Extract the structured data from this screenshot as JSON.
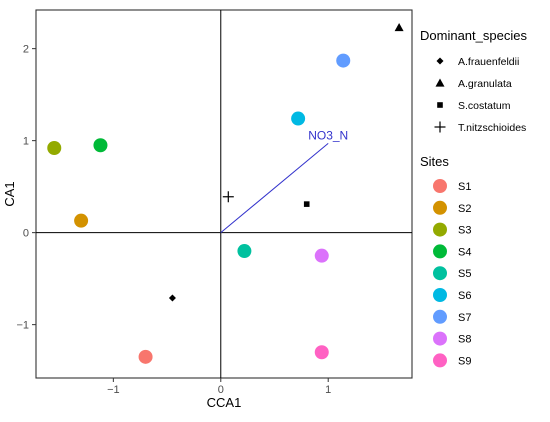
{
  "chart_data": {
    "type": "scatter",
    "xlabel": "CCA1",
    "ylabel": "CA1",
    "xlim": [
      -1.72,
      1.78
    ],
    "ylim": [
      -1.58,
      2.42
    ],
    "x_ticks": [
      -1,
      0,
      1
    ],
    "x_tick_labels": [
      "−1",
      "0",
      "1"
    ],
    "y_ticks": [
      -1,
      0,
      1,
      2
    ],
    "y_tick_labels": [
      "−1",
      "0",
      "1",
      "2"
    ],
    "zero_lines": true,
    "grid": false,
    "sites": {
      "legend_title": "Sites",
      "points": [
        {
          "name": "S1",
          "x": -0.7,
          "y": -1.35,
          "color": "#F8766D"
        },
        {
          "name": "S2",
          "x": -1.3,
          "y": 0.13,
          "color": "#D39200"
        },
        {
          "name": "S3",
          "x": -1.55,
          "y": 0.92,
          "color": "#93AA00"
        },
        {
          "name": "S4",
          "x": -1.12,
          "y": 0.95,
          "color": "#00BA38"
        },
        {
          "name": "S5",
          "x": 0.22,
          "y": -0.2,
          "color": "#00C19F"
        },
        {
          "name": "S6",
          "x": 0.72,
          "y": 1.24,
          "color": "#00B9E3"
        },
        {
          "name": "S7",
          "x": 1.14,
          "y": 1.87,
          "color": "#619CFF"
        },
        {
          "name": "S8",
          "x": 0.94,
          "y": -0.25,
          "color": "#DB72FB"
        },
        {
          "name": "S9",
          "x": 0.94,
          "y": -1.3,
          "color": "#FF61C3"
        }
      ]
    },
    "species": {
      "legend_title": "Dominant_species",
      "points": [
        {
          "name": "A.frauenfeldii",
          "shape": "diamond",
          "x": -0.45,
          "y": -0.71
        },
        {
          "name": "A.granulata",
          "shape": "triangle",
          "x": 1.66,
          "y": 2.23
        },
        {
          "name": "S.costatum",
          "shape": "square",
          "x": 0.8,
          "y": 0.31
        },
        {
          "name": "T.nitzschioides",
          "shape": "cross",
          "x": 0.07,
          "y": 0.39
        }
      ]
    },
    "vector": {
      "name": "NO3_N",
      "x": 1.0,
      "y": 0.97,
      "color": "#3333cc"
    }
  }
}
